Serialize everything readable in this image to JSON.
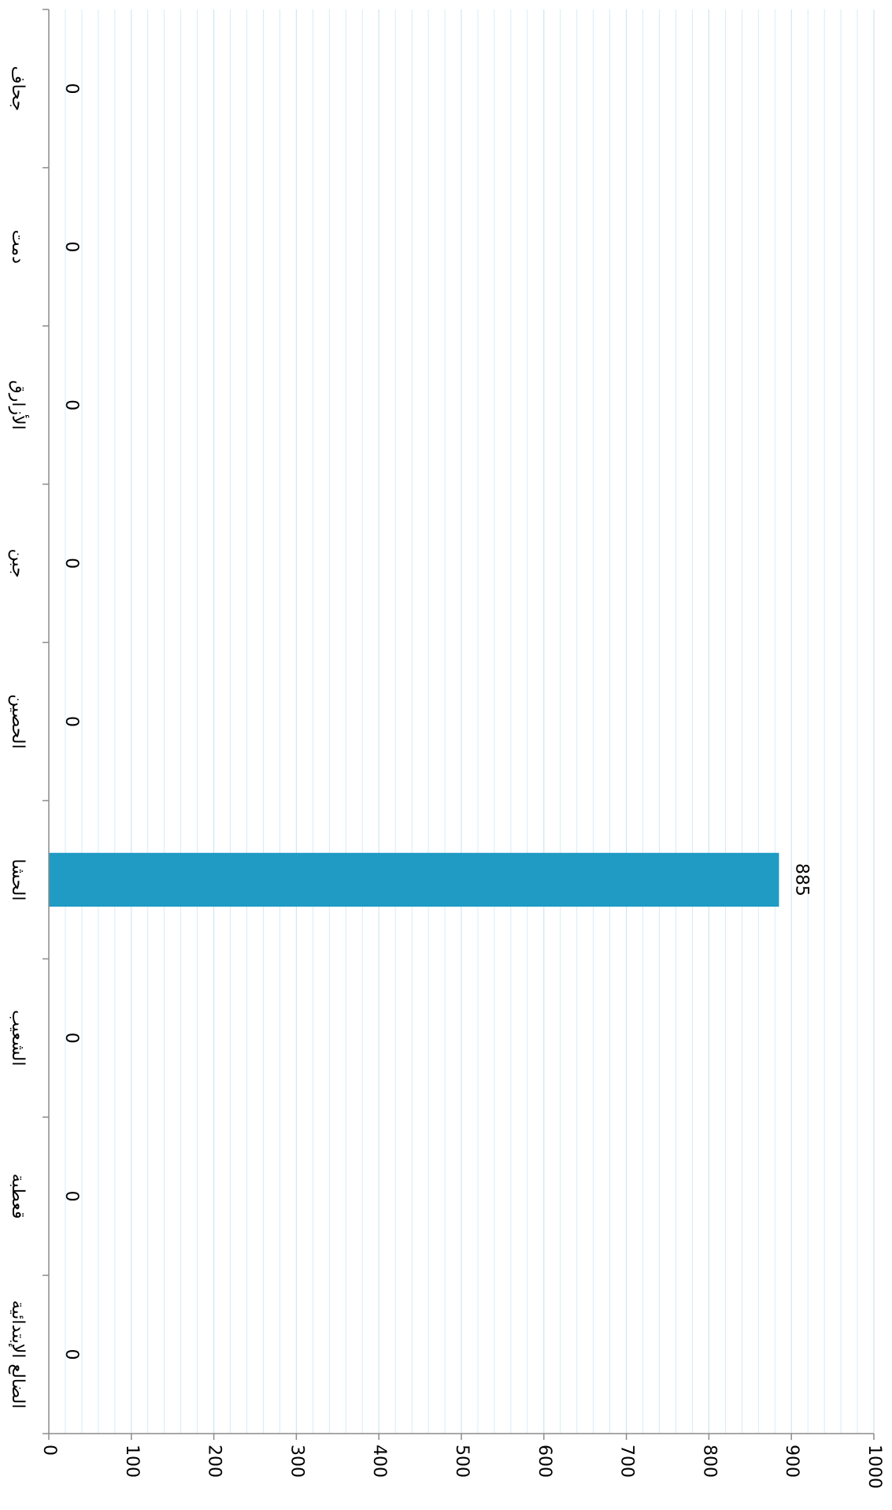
{
  "chart_data": {
    "type": "bar",
    "orientation": "vertical-rotated-90",
    "categories": [
      "جحاف",
      "دمت",
      "الأزارق",
      "جبن",
      "الحصين",
      "الحشا",
      "الشعيب",
      "قعطبة",
      "الضالع الإبتدائية"
    ],
    "values": [
      0,
      0,
      0,
      0,
      0,
      885,
      0,
      0,
      0
    ],
    "value_labels": [
      "0",
      "0",
      "0",
      "0",
      "0",
      "885",
      "0",
      "0",
      "0"
    ],
    "value_axis": {
      "min": 0,
      "max": 1000,
      "major_step": 100,
      "minor_step": 20,
      "tick_labels": [
        "0",
        "100",
        "200",
        "300",
        "400",
        "500",
        "600",
        "700",
        "800",
        "900",
        "1000"
      ]
    },
    "grid": true,
    "title": "",
    "xlabel": "",
    "ylabel": "",
    "colors": {
      "bar": "#1f9bc4",
      "grid": "#cfe6f0",
      "axis": "#8c8c8c"
    }
  }
}
